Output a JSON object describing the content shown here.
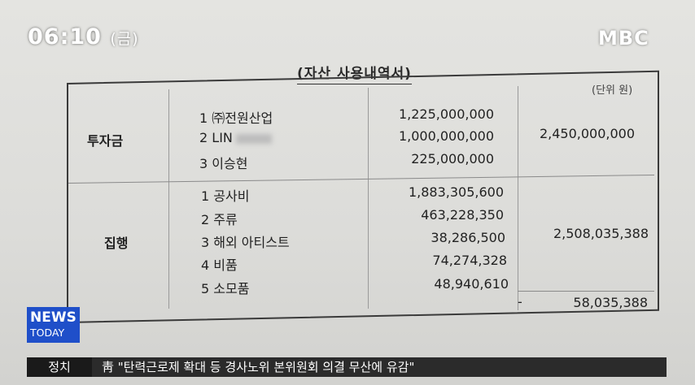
{
  "overlay": {
    "time": "06:10",
    "day": "(금)",
    "channel_logo": "MBC",
    "badge_line1": "NEWS",
    "badge_line2": "TODAY",
    "ticker_category": "정치",
    "ticker_headline": "靑 \"탄력근로제 확대 등 경사노위 본위원회 의결 무산에 유감\""
  },
  "document": {
    "title": "(자산 사용내역서)",
    "unit": "(단위 원)",
    "investment": {
      "label": "투자금",
      "rows": [
        {
          "no": "1",
          "name": "㈜전원산업",
          "amount": "1,225,000,000"
        },
        {
          "no": "2",
          "name": "LIN",
          "amount": "1,000,000,000"
        },
        {
          "no": "3",
          "name": "이승현",
          "amount": "225,000,000"
        }
      ],
      "total": "2,450,000,000"
    },
    "execution": {
      "label": "집행",
      "rows": [
        {
          "no": "1",
          "name": "공사비",
          "amount": "1,883,305,600"
        },
        {
          "no": "2",
          "name": "주류",
          "amount": "463,228,350"
        },
        {
          "no": "3",
          "name": "해외 아티스트",
          "amount": "38,286,500"
        },
        {
          "no": "4",
          "name": "비품",
          "amount": "74,274,328"
        },
        {
          "no": "5",
          "name": "소모품",
          "amount": "48,940,610"
        }
      ],
      "total": "2,508,035,388"
    },
    "balance_sign": "-",
    "balance": "58,035,388"
  }
}
